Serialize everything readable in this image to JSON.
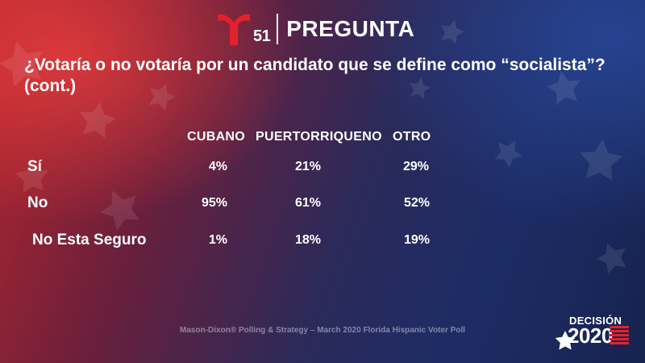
{
  "brand": {
    "channel_number": "51",
    "section": "PREGUNTA",
    "accent_color": "#e4212b"
  },
  "question": {
    "line1": "¿Votaría o no votaría por un candidato que se define como “socialista”?",
    "line2": "(cont.)"
  },
  "table": {
    "columns": [
      "CUBANO",
      "PUERTORRIQUENO",
      "OTRO"
    ],
    "rows": [
      {
        "label": "Sí",
        "values": [
          "4%",
          "21%",
          "29%"
        ]
      },
      {
        "label": "No",
        "values": [
          "95%",
          "61%",
          "52%"
        ]
      },
      {
        "label": "No Esta Seguro",
        "values": [
          "1%",
          "18%",
          "19%"
        ]
      }
    ]
  },
  "footer": {
    "source": "Mason-Dixon® Polling & Strategy – March 2020 Florida Hispanic Voter Poll"
  },
  "badge": {
    "word": "DECISIÓN",
    "year": "2020"
  }
}
